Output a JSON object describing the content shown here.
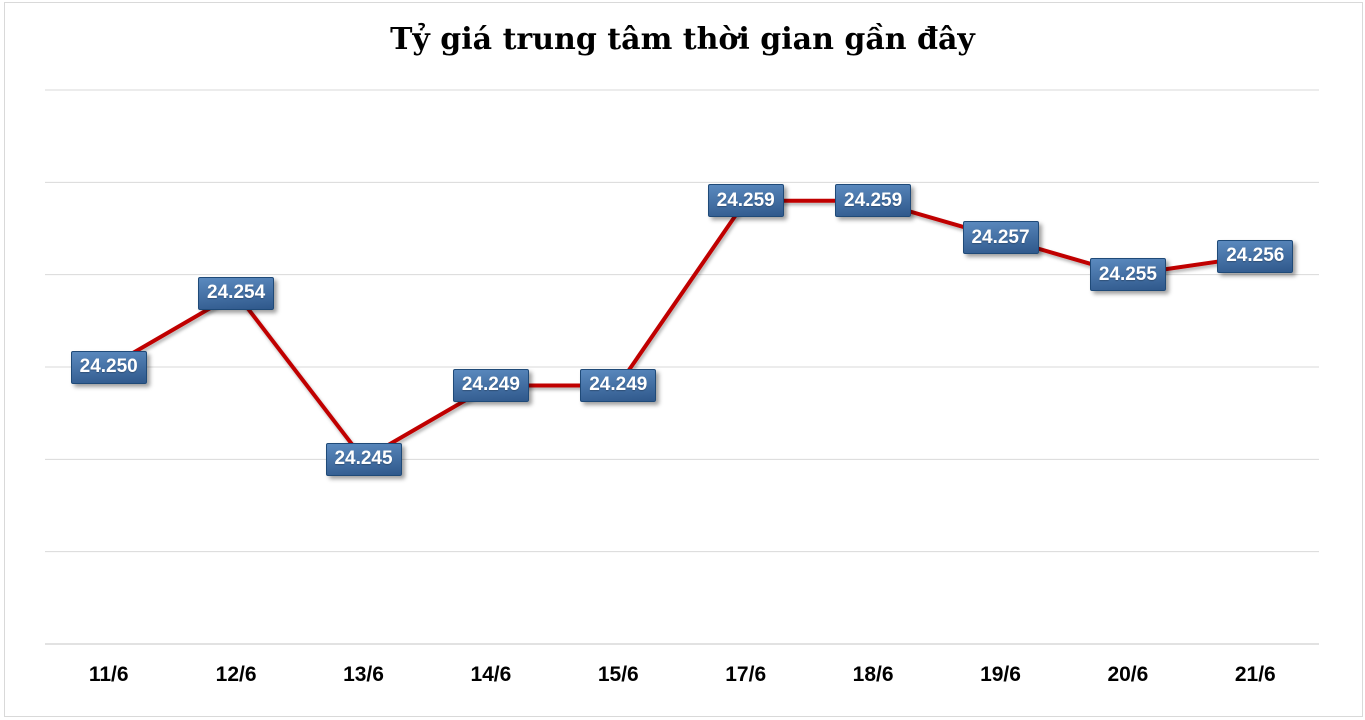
{
  "chart_data": {
    "type": "line",
    "title": "Tỷ giá trung tâm thời gian gần đây",
    "categories": [
      "11/6",
      "12/6",
      "13/6",
      "14/6",
      "15/6",
      "17/6",
      "18/6",
      "19/6",
      "20/6",
      "21/6"
    ],
    "series": [
      {
        "name": "Tỷ giá trung tâm",
        "values": [
          24250,
          24254,
          24245,
          24249,
          24249,
          24259,
          24259,
          24257,
          24255,
          24256
        ],
        "point_labels": [
          "24.250",
          "24.254",
          "24.245",
          "24.249",
          "24.249",
          "24.259",
          "24.259",
          "24.257",
          "24.255",
          "24.256"
        ]
      }
    ],
    "xlabel": "",
    "ylabel": "",
    "ylim": [
      24235,
      24265
    ],
    "grid_step": 5,
    "grid": true,
    "legend_position": "none",
    "y_axis_tick_labels_visible": false
  },
  "colors": {
    "background": "#FFFFFF",
    "chart_border": "#D9D9D9",
    "gridline": "#D9D9D9",
    "axis_line": "#C6C6C6",
    "series_line": "#C00000",
    "label_box_top": "#5B8ABF",
    "label_box_bottom": "#2F588B",
    "label_box_border": "#1F4A78",
    "label_text": "#FFFFFF",
    "title_text": "#000000",
    "axis_label_text": "#000000"
  }
}
